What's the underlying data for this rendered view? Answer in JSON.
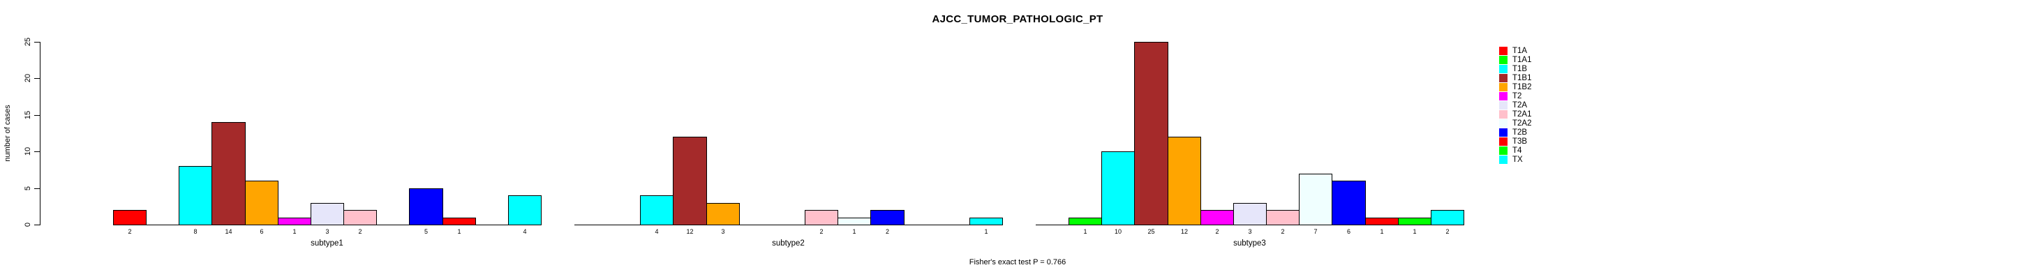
{
  "chart_data": {
    "type": "bar",
    "title": "AJCC_TUMOR_PATHOLOGIC_PT",
    "ylabel": "number of cases",
    "ylim": [
      0,
      25
    ],
    "yticks": [
      0,
      5,
      10,
      15,
      20,
      25
    ],
    "annotation": "Fisher's exact test P = 0.766",
    "grid": false,
    "legend_position": "right",
    "categories": [
      "T1A",
      "T1A1",
      "T1B",
      "T1B1",
      "T1B2",
      "T2",
      "T2A",
      "T2A1",
      "T2A2",
      "T2B",
      "T3B",
      "T4",
      "TX"
    ],
    "palette": [
      "#FF0000",
      "#00FF00",
      "#00FFFF",
      "#A52A2A",
      "#FFA500",
      "#FF00FF",
      "#E6E6FA",
      "#FFC0CB",
      "#F0FFFF",
      "#0000FF",
      "#FF0000",
      "#00FF00",
      "#00FFFF"
    ],
    "groups": [
      {
        "label": "subtype1",
        "values": [
          2,
          0,
          8,
          14,
          6,
          1,
          3,
          2,
          0,
          5,
          1,
          0,
          4
        ]
      },
      {
        "label": "subtype2",
        "values": [
          0,
          0,
          4,
          12,
          3,
          0,
          0,
          2,
          1,
          2,
          0,
          0,
          1
        ]
      },
      {
        "label": "subtype3",
        "values": [
          0,
          1,
          10,
          25,
          12,
          2,
          3,
          2,
          7,
          6,
          1,
          1,
          2
        ]
      }
    ],
    "legend": [
      {
        "label": "T1A",
        "color": "#FF0000"
      },
      {
        "label": "T1A1",
        "color": "#00FF00"
      },
      {
        "label": "T1B",
        "color": "#00FFFF"
      },
      {
        "label": "T1B1",
        "color": "#A52A2A"
      },
      {
        "label": "T1B2",
        "color": "#FFA500"
      },
      {
        "label": "T2",
        "color": "#FF00FF"
      },
      {
        "label": "T2A",
        "color": "#E6E6FA"
      },
      {
        "label": "T2A1",
        "color": "#FFC0CB"
      },
      {
        "label": "T2A2",
        "color": "#F0FFFF"
      },
      {
        "label": "T2B",
        "color": "#0000FF"
      },
      {
        "label": "T3B",
        "color": "#FF0000"
      },
      {
        "label": "T4",
        "color": "#00FF00"
      },
      {
        "label": "TX",
        "color": "#00FFFF"
      }
    ]
  }
}
